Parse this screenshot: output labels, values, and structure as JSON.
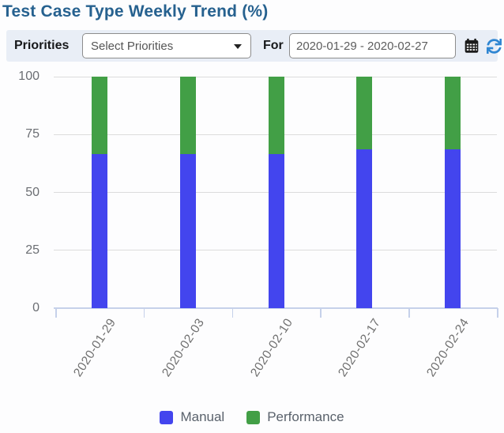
{
  "header": {
    "title": "Test Case Type Weekly Trend (%)"
  },
  "toolbar": {
    "priorities_label": "Priorities",
    "priorities_value": "Select Priorities",
    "for_label": "For",
    "date_range_value": "2020-01-29 - 2020-02-27"
  },
  "chart_data": {
    "type": "bar",
    "stacked": true,
    "title": "Test Case Type Weekly Trend (%)",
    "categories": [
      "2020-01-29",
      "2020-02-03",
      "2020-02-10",
      "2020-02-17",
      "2020-02-24"
    ],
    "series": [
      {
        "name": "Manual",
        "color": "#4345ee",
        "values": [
          66.4,
          66.4,
          66.4,
          68.6,
          68.6
        ]
      },
      {
        "name": "Performance",
        "color": "#429f46",
        "values": [
          33.6,
          33.6,
          33.6,
          31.4,
          31.4
        ]
      }
    ],
    "xlabel": "",
    "ylabel": "",
    "ylim": [
      0,
      100
    ],
    "yticks": [
      0,
      25,
      50,
      75,
      100
    ],
    "grid": true,
    "legend_position": "bottom"
  },
  "legend": {
    "items": [
      {
        "label": "Manual",
        "color": "#4345ee"
      },
      {
        "label": "Performance",
        "color": "#429f46"
      }
    ]
  },
  "colors": {
    "title": "#26618f",
    "toolbar_bg": "#e9eef6",
    "refresh_icon": "#2f86d2",
    "calendar_icon": "#1b1b1b"
  }
}
